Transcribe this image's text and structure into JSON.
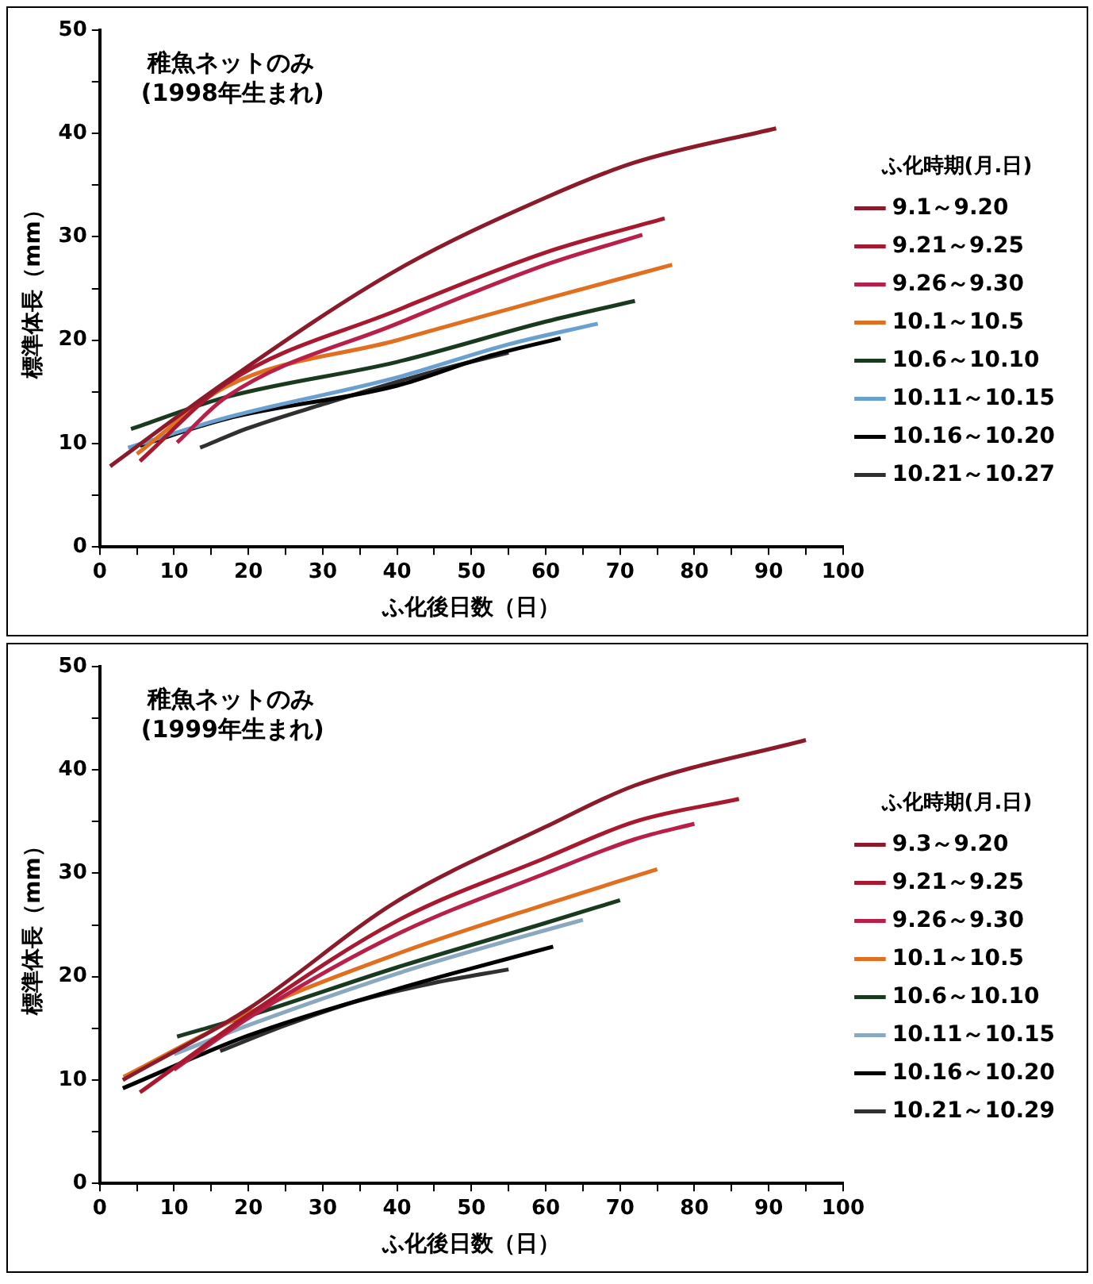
{
  "chart_data": [
    {
      "type": "line",
      "title": "稚魚ネットのみ",
      "subtitle": "(1998年生まれ)",
      "xlabel": "ふ化後日数（日）",
      "ylabel": "標準体長（mm）",
      "legend_title": "ふ化時期(月.日)",
      "legend": "right",
      "grid": false,
      "xlim": [
        0,
        100
      ],
      "xticks": [
        0,
        {
          "value": 5,
          "label": null
        },
        10,
        {
          "value": 15,
          "label": null
        },
        20,
        {
          "value": 25,
          "label": null
        },
        30,
        {
          "value": 35,
          "label": null
        },
        40,
        {
          "value": 45,
          "label": null
        },
        50,
        {
          "value": 55,
          "label": null
        },
        60,
        {
          "value": 65,
          "label": null
        },
        70,
        {
          "value": 75,
          "label": null
        },
        80,
        {
          "value": 85,
          "label": null
        },
        90,
        {
          "value": 95,
          "label": null
        },
        100
      ],
      "ylim": [
        0,
        50
      ],
      "yticks": [
        0,
        {
          "value": 5,
          "label": null
        },
        10,
        {
          "value": 15,
          "label": null
        },
        20,
        {
          "value": 25,
          "label": null
        },
        30,
        {
          "value": 35,
          "label": null
        },
        40,
        {
          "value": 45,
          "label": null
        },
        50
      ],
      "series": [
        {
          "name": "9.1～9.20",
          "color": "#8b1a2a",
          "x": [
            1.4,
            17,
            40,
            60,
            72,
            91
          ],
          "values": [
            7.8,
            16,
            26.8,
            33.8,
            37.2,
            40.5
          ]
        },
        {
          "name": "9.21～9.25",
          "color": "#a8182e",
          "x": [
            5.4,
            17,
            40,
            60,
            76
          ],
          "values": [
            8.3,
            15.8,
            22.9,
            28.5,
            31.8
          ]
        },
        {
          "name": "9.26～9.30",
          "color": "#b8204a",
          "x": [
            10.4,
            17,
            40,
            60,
            73
          ],
          "values": [
            10.1,
            14.5,
            21.6,
            27.3,
            30.2
          ]
        },
        {
          "name": "10.1～10.5",
          "color": "#e07020",
          "x": [
            5,
            17,
            40,
            60,
            77
          ],
          "values": [
            9,
            15.5,
            20,
            24,
            27.3
          ]
        },
        {
          "name": "10.6～10.10",
          "color": "#1a3a20",
          "x": [
            4.2,
            17,
            40,
            60,
            72
          ],
          "values": [
            11.4,
            14.5,
            17.9,
            21.8,
            23.8
          ]
        },
        {
          "name": "10.11～10.15",
          "color": "#6aa0d0",
          "x": [
            3.8,
            17,
            40,
            55,
            67
          ],
          "values": [
            9.6,
            12.5,
            16.4,
            19.6,
            21.6
          ]
        },
        {
          "name": "10.16～10.20",
          "color": "#000000",
          "x": [
            5.4,
            17,
            40,
            52,
            62
          ],
          "values": [
            9.8,
            12.4,
            15.6,
            18.4,
            20.2
          ]
        },
        {
          "name": "10.21～10.27",
          "color": "#303030",
          "x": [
            13.5,
            20,
            30,
            45,
            55
          ],
          "values": [
            9.6,
            11.5,
            13.8,
            17,
            18.8
          ]
        }
      ]
    },
    {
      "type": "line",
      "title": "稚魚ネットのみ",
      "subtitle": "(1999年生まれ)",
      "xlabel": "ふ化後日数（日）",
      "ylabel": "標準体長（mm）",
      "legend_title": "ふ化時期(月.日)",
      "legend": "right",
      "grid": false,
      "xlim": [
        0,
        100
      ],
      "xticks": [
        0,
        {
          "value": 5,
          "label": null
        },
        10,
        {
          "value": 15,
          "label": null
        },
        20,
        {
          "value": 25,
          "label": null
        },
        30,
        {
          "value": 35,
          "label": null
        },
        40,
        {
          "value": 45,
          "label": null
        },
        50,
        {
          "value": 55,
          "label": null
        },
        60,
        {
          "value": 65,
          "label": null
        },
        70,
        {
          "value": 75,
          "label": null
        },
        80,
        {
          "value": 85,
          "label": null
        },
        90,
        {
          "value": 95,
          "label": null
        },
        100
      ],
      "ylim": [
        0,
        50
      ],
      "yticks": [
        0,
        {
          "value": 5,
          "label": null
        },
        10,
        {
          "value": 15,
          "label": null
        },
        20,
        {
          "value": 25,
          "label": null
        },
        30,
        {
          "value": 35,
          "label": null
        },
        40,
        {
          "value": 45,
          "label": null
        },
        50
      ],
      "series": [
        {
          "name": "9.3～9.20",
          "color": "#8b1a2a",
          "x": [
            3.1,
            20,
            40,
            60,
            72,
            95
          ],
          "values": [
            10,
            16.9,
            27.3,
            34.5,
            38.5,
            42.9
          ]
        },
        {
          "name": "9.21～9.25",
          "color": "#a8182e",
          "x": [
            5.4,
            20,
            40,
            60,
            72,
            86
          ],
          "values": [
            8.8,
            16.3,
            25.4,
            31.5,
            35,
            37.2
          ]
        },
        {
          "name": "9.26～9.30",
          "color": "#b8204a",
          "x": [
            10,
            20,
            40,
            60,
            72,
            80
          ],
          "values": [
            11,
            16,
            24.1,
            30,
            33.3,
            34.8
          ]
        },
        {
          "name": "10.1～10.5",
          "color": "#e07020",
          "x": [
            3.2,
            20,
            40,
            60,
            75
          ],
          "values": [
            10.3,
            16.5,
            22.2,
            27,
            30.4
          ]
        },
        {
          "name": "10.6～10.10",
          "color": "#1a3a20",
          "x": [
            10.4,
            20,
            40,
            60,
            70
          ],
          "values": [
            14.2,
            16.2,
            20.9,
            25.2,
            27.4
          ]
        },
        {
          "name": "10.11～10.15",
          "color": "#8aa8c0",
          "x": [
            10,
            20,
            40,
            55,
            65
          ],
          "values": [
            12.5,
            15.3,
            20.3,
            23.5,
            25.5
          ]
        },
        {
          "name": "10.16～10.20",
          "color": "#000000",
          "x": [
            3.1,
            20,
            40,
            50,
            61
          ],
          "values": [
            9.2,
            14.3,
            18.8,
            20.8,
            22.9
          ]
        },
        {
          "name": "10.21～10.29",
          "color": "#303030",
          "x": [
            16.2,
            25,
            35,
            45,
            55
          ],
          "values": [
            12.8,
            15.3,
            17.7,
            19.4,
            20.7
          ]
        }
      ]
    }
  ]
}
